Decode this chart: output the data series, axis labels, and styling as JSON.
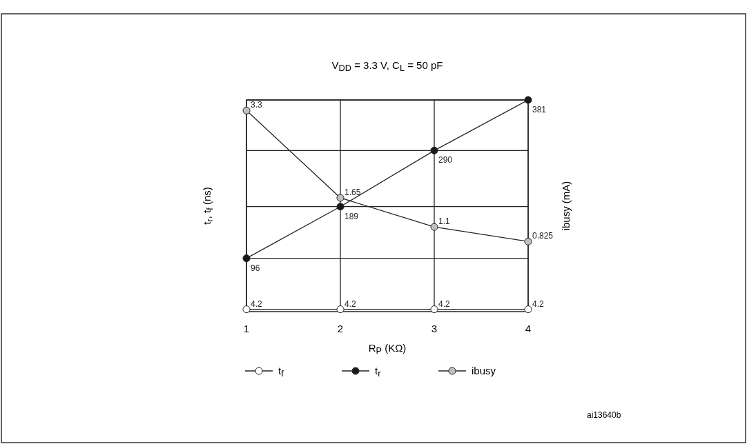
{
  "chart_data": {
    "type": "line",
    "title": "V$_{DD}$ = 3.3 V, C$_{L}$ = 50 pF",
    "xlabel": "R$_{P}$ (KΩ)",
    "ylabel": "t$_{r}$, t$_{f}$ (ns)",
    "y2label": "ibusy (mA)",
    "x": [
      1,
      2,
      3,
      4
    ],
    "xlim": [
      1,
      4
    ],
    "xticks": [
      1,
      2,
      3,
      4
    ],
    "ylim": [
      0,
      381
    ],
    "yticks": [
      {
        "value": 96,
        "label": null
      },
      {
        "value": 189,
        "label": null
      },
      {
        "value": 290,
        "label": null
      },
      {
        "value": 381,
        "label": null
      }
    ],
    "y2lim": [
      -0.5,
      3.5
    ],
    "series": [
      {
        "name": "t$_{f}$",
        "color": "#ffffff",
        "values": [
          4.2,
          4.2,
          4.2,
          4.2
        ]
      },
      {
        "name": "t$_{r}$",
        "color": "#1a1a1a",
        "values": [
          96,
          189,
          290,
          381
        ]
      },
      {
        "name": "ibusy",
        "color": "#c0c0c0",
        "values": [
          3.3,
          1.65,
          1.1,
          0.825
        ],
        "axis": "y2"
      }
    ],
    "marker": "circle",
    "data_labels": true,
    "grid": true,
    "legend": "bottom",
    "tick_labels": "x",
    "annotations": [
      "ai13640b"
    ]
  }
}
